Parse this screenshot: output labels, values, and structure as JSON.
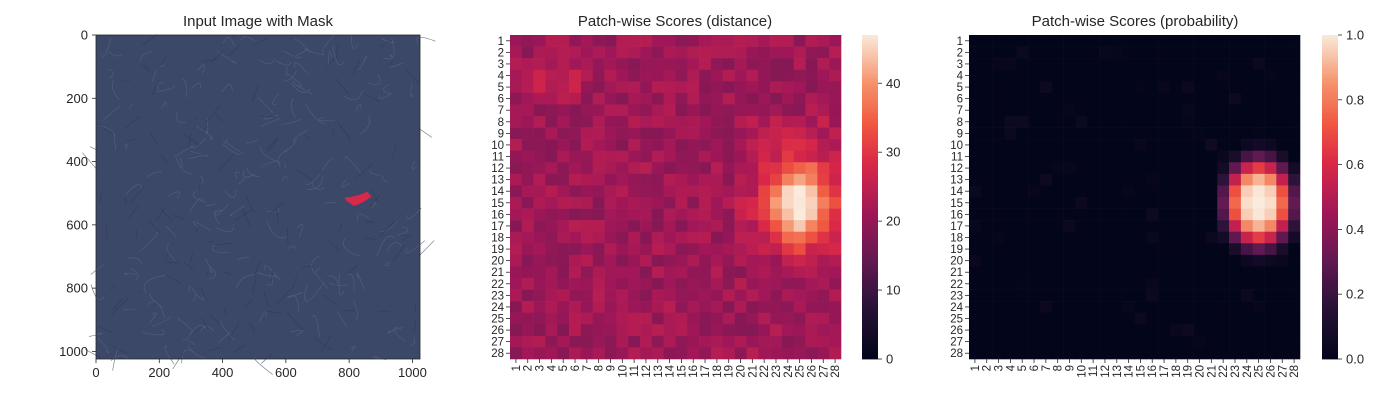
{
  "figure": {
    "panels": [
      {
        "title": "Input Image with Mask"
      },
      {
        "title": "Patch-wise Scores (distance)"
      },
      {
        "title": "Patch-wise Scores (probability)"
      }
    ]
  },
  "chart_data": [
    {
      "type": "image",
      "title": "Input Image with Mask",
      "xlim": [
        0,
        1024
      ],
      "ylim": [
        1024,
        0
      ],
      "x_ticks": [
        0,
        200,
        400,
        600,
        800,
        1000
      ],
      "y_ticks": [
        0,
        200,
        400,
        600,
        800,
        1000
      ],
      "image_color": "#3c4868",
      "mask_color": "#d8284c",
      "mask_region": {
        "x_range": [
          785,
          870
        ],
        "y_range": [
          495,
          540
        ]
      }
    },
    {
      "type": "heatmap",
      "title": "Patch-wise Scores (distance)",
      "rows": 28,
      "cols": 28,
      "row_labels": [
        "1",
        "2",
        "3",
        "4",
        "5",
        "6",
        "7",
        "8",
        "9",
        "10",
        "11",
        "12",
        "13",
        "14",
        "15",
        "16",
        "17",
        "18",
        "19",
        "20",
        "21",
        "22",
        "23",
        "24",
        "25",
        "26",
        "27",
        "28"
      ],
      "col_labels": [
        "1",
        "2",
        "3",
        "4",
        "5",
        "6",
        "7",
        "8",
        "9",
        "10",
        "11",
        "12",
        "13",
        "14",
        "15",
        "16",
        "17",
        "18",
        "19",
        "20",
        "21",
        "22",
        "23",
        "24",
        "25",
        "26",
        "27",
        "28"
      ],
      "vmin": 0,
      "vmax": 47,
      "colorbar_ticks": [
        0,
        10,
        20,
        30,
        40
      ],
      "colormap": "rocket",
      "background_value": 21,
      "hotspot": {
        "center_row": 15,
        "center_col": 25,
        "peak": 47,
        "value_range_outside": [
          18,
          27
        ]
      }
    },
    {
      "type": "heatmap",
      "title": "Patch-wise Scores (probability)",
      "rows": 28,
      "cols": 28,
      "row_labels": [
        "1",
        "2",
        "3",
        "4",
        "5",
        "6",
        "7",
        "8",
        "9",
        "10",
        "11",
        "12",
        "13",
        "14",
        "15",
        "16",
        "17",
        "18",
        "19",
        "20",
        "21",
        "22",
        "23",
        "24",
        "25",
        "26",
        "27",
        "28"
      ],
      "col_labels": [
        "1",
        "2",
        "3",
        "4",
        "5",
        "6",
        "7",
        "8",
        "9",
        "10",
        "11",
        "12",
        "13",
        "14",
        "15",
        "16",
        "17",
        "18",
        "19",
        "20",
        "21",
        "22",
        "23",
        "24",
        "25",
        "26",
        "27",
        "28"
      ],
      "vmin": 0.0,
      "vmax": 1.0,
      "colorbar_ticks": [
        "0.0",
        "0.2",
        "0.4",
        "0.6",
        "0.8",
        "1.0"
      ],
      "colormap": "rocket",
      "background_value": 0.0,
      "hotspot": {
        "center_row": 15,
        "center_col": 25,
        "peak": 1.0
      }
    }
  ]
}
